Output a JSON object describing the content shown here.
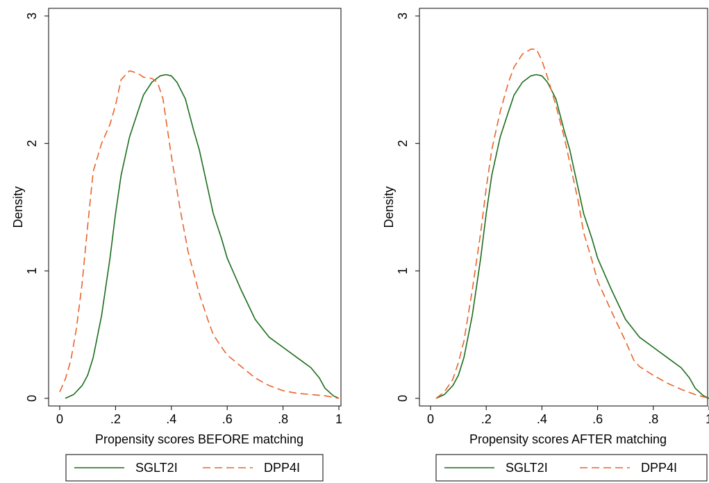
{
  "chart_data": [
    {
      "type": "line",
      "title": "",
      "xlabel": "Propensity scores BEFORE matching",
      "ylabel": "Density",
      "xlim": [
        0,
        1
      ],
      "ylim": [
        0,
        3
      ],
      "x_ticks": [
        0,
        0.2,
        0.4,
        0.6,
        0.8,
        1
      ],
      "x_tick_labels": [
        "0",
        ".2",
        ".4",
        ".6",
        ".8",
        "1"
      ],
      "y_ticks": [
        0,
        1,
        2,
        3
      ],
      "y_tick_labels": [
        "0",
        "1",
        "2",
        "3"
      ],
      "grid": false,
      "legend_position": "bottom",
      "series": [
        {
          "name": "SGLT2I",
          "color": "#1a6b1a",
          "style": "solid",
          "points": [
            [
              0.02,
              0.0
            ],
            [
              0.05,
              0.03
            ],
            [
              0.08,
              0.1
            ],
            [
              0.1,
              0.18
            ],
            [
              0.12,
              0.32
            ],
            [
              0.15,
              0.65
            ],
            [
              0.18,
              1.1
            ],
            [
              0.2,
              1.45
            ],
            [
              0.22,
              1.75
            ],
            [
              0.25,
              2.05
            ],
            [
              0.28,
              2.25
            ],
            [
              0.3,
              2.38
            ],
            [
              0.33,
              2.48
            ],
            [
              0.36,
              2.53
            ],
            [
              0.38,
              2.54
            ],
            [
              0.4,
              2.53
            ],
            [
              0.42,
              2.48
            ],
            [
              0.45,
              2.35
            ],
            [
              0.48,
              2.1
            ],
            [
              0.5,
              1.95
            ],
            [
              0.53,
              1.65
            ],
            [
              0.55,
              1.45
            ],
            [
              0.58,
              1.25
            ],
            [
              0.6,
              1.1
            ],
            [
              0.65,
              0.85
            ],
            [
              0.7,
              0.62
            ],
            [
              0.75,
              0.48
            ],
            [
              0.8,
              0.4
            ],
            [
              0.85,
              0.32
            ],
            [
              0.9,
              0.24
            ],
            [
              0.93,
              0.16
            ],
            [
              0.95,
              0.08
            ],
            [
              0.98,
              0.02
            ],
            [
              1.0,
              0.0
            ]
          ]
        },
        {
          "name": "DPP4I",
          "color": "#e8632a",
          "style": "dashed",
          "points": [
            [
              0.0,
              0.05
            ],
            [
              0.02,
              0.15
            ],
            [
              0.04,
              0.3
            ],
            [
              0.06,
              0.55
            ],
            [
              0.08,
              0.9
            ],
            [
              0.1,
              1.35
            ],
            [
              0.12,
              1.78
            ],
            [
              0.15,
              2.0
            ],
            [
              0.18,
              2.15
            ],
            [
              0.2,
              2.3
            ],
            [
              0.22,
              2.5
            ],
            [
              0.25,
              2.57
            ],
            [
              0.28,
              2.55
            ],
            [
              0.3,
              2.52
            ],
            [
              0.33,
              2.51
            ],
            [
              0.35,
              2.48
            ],
            [
              0.37,
              2.35
            ],
            [
              0.4,
              1.9
            ],
            [
              0.43,
              1.5
            ],
            [
              0.46,
              1.15
            ],
            [
              0.5,
              0.82
            ],
            [
              0.53,
              0.62
            ],
            [
              0.55,
              0.5
            ],
            [
              0.58,
              0.4
            ],
            [
              0.6,
              0.34
            ],
            [
              0.65,
              0.25
            ],
            [
              0.7,
              0.16
            ],
            [
              0.75,
              0.1
            ],
            [
              0.8,
              0.06
            ],
            [
              0.85,
              0.04
            ],
            [
              0.9,
              0.03
            ],
            [
              0.95,
              0.02
            ],
            [
              1.0,
              0.0
            ]
          ]
        }
      ]
    },
    {
      "type": "line",
      "title": "",
      "xlabel": "Propensity scores AFTER matching",
      "ylabel": "Density",
      "xlim": [
        0,
        1
      ],
      "ylim": [
        0,
        3
      ],
      "x_ticks": [
        0,
        0.2,
        0.4,
        0.6,
        0.8,
        1
      ],
      "x_tick_labels": [
        "0",
        ".2",
        ".4",
        ".6",
        ".8",
        "1"
      ],
      "y_ticks": [
        0,
        1,
        2,
        3
      ],
      "y_tick_labels": [
        "0",
        "1",
        "2",
        "3"
      ],
      "grid": false,
      "legend_position": "bottom",
      "series": [
        {
          "name": "SGLT2I",
          "color": "#1a6b1a",
          "style": "solid",
          "points": [
            [
              0.02,
              0.0
            ],
            [
              0.05,
              0.03
            ],
            [
              0.08,
              0.1
            ],
            [
              0.1,
              0.18
            ],
            [
              0.12,
              0.32
            ],
            [
              0.15,
              0.65
            ],
            [
              0.18,
              1.1
            ],
            [
              0.2,
              1.45
            ],
            [
              0.22,
              1.75
            ],
            [
              0.25,
              2.05
            ],
            [
              0.28,
              2.25
            ],
            [
              0.3,
              2.38
            ],
            [
              0.33,
              2.48
            ],
            [
              0.36,
              2.53
            ],
            [
              0.38,
              2.54
            ],
            [
              0.4,
              2.53
            ],
            [
              0.42,
              2.48
            ],
            [
              0.45,
              2.35
            ],
            [
              0.48,
              2.1
            ],
            [
              0.5,
              1.95
            ],
            [
              0.53,
              1.65
            ],
            [
              0.55,
              1.45
            ],
            [
              0.58,
              1.25
            ],
            [
              0.6,
              1.1
            ],
            [
              0.65,
              0.85
            ],
            [
              0.7,
              0.62
            ],
            [
              0.75,
              0.48
            ],
            [
              0.8,
              0.4
            ],
            [
              0.85,
              0.32
            ],
            [
              0.9,
              0.24
            ],
            [
              0.93,
              0.16
            ],
            [
              0.95,
              0.08
            ],
            [
              0.98,
              0.02
            ],
            [
              1.0,
              0.0
            ]
          ]
        },
        {
          "name": "DPP4I",
          "color": "#e8632a",
          "style": "dashed",
          "points": [
            [
              0.02,
              0.0
            ],
            [
              0.05,
              0.05
            ],
            [
              0.08,
              0.15
            ],
            [
              0.1,
              0.28
            ],
            [
              0.12,
              0.45
            ],
            [
              0.15,
              0.85
            ],
            [
              0.18,
              1.3
            ],
            [
              0.2,
              1.65
            ],
            [
              0.22,
              1.95
            ],
            [
              0.25,
              2.25
            ],
            [
              0.28,
              2.48
            ],
            [
              0.3,
              2.6
            ],
            [
              0.33,
              2.7
            ],
            [
              0.36,
              2.74
            ],
            [
              0.38,
              2.74
            ],
            [
              0.4,
              2.65
            ],
            [
              0.42,
              2.52
            ],
            [
              0.45,
              2.3
            ],
            [
              0.48,
              2.05
            ],
            [
              0.5,
              1.85
            ],
            [
              0.53,
              1.55
            ],
            [
              0.55,
              1.3
            ],
            [
              0.58,
              1.08
            ],
            [
              0.6,
              0.92
            ],
            [
              0.65,
              0.68
            ],
            [
              0.7,
              0.45
            ],
            [
              0.73,
              0.3
            ],
            [
              0.75,
              0.25
            ],
            [
              0.8,
              0.18
            ],
            [
              0.85,
              0.12
            ],
            [
              0.9,
              0.07
            ],
            [
              0.95,
              0.03
            ],
            [
              1.0,
              0.0
            ]
          ]
        }
      ]
    }
  ]
}
